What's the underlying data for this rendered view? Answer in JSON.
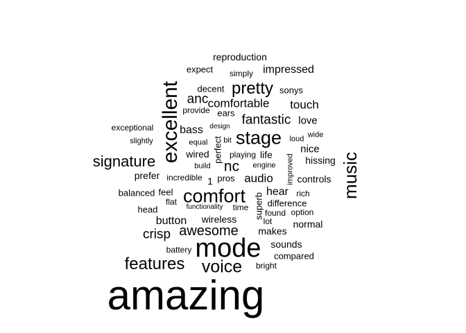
{
  "words": [
    {
      "text": "amazing"
    },
    {
      "text": "mode"
    },
    {
      "text": "excellent"
    },
    {
      "text": "comfort"
    },
    {
      "text": "stage"
    },
    {
      "text": "music"
    },
    {
      "text": "voice"
    },
    {
      "text": "features"
    },
    {
      "text": "pretty"
    },
    {
      "text": "signature"
    },
    {
      "text": "awesome"
    },
    {
      "text": "fantastic"
    },
    {
      "text": "nc"
    },
    {
      "text": "anc"
    },
    {
      "text": "crisp"
    },
    {
      "text": "comfortable"
    },
    {
      "text": "touch"
    },
    {
      "text": "impressed"
    },
    {
      "text": "audio"
    },
    {
      "text": "hear"
    },
    {
      "text": "bass"
    },
    {
      "text": "button"
    },
    {
      "text": "love"
    },
    {
      "text": "nice"
    },
    {
      "text": "hissing"
    },
    {
      "text": "normal"
    },
    {
      "text": "controls"
    },
    {
      "text": "wireless"
    },
    {
      "text": "sounds"
    },
    {
      "text": "reproduction"
    },
    {
      "text": "expect"
    },
    {
      "text": "simply"
    },
    {
      "text": "decent"
    },
    {
      "text": "sonys"
    },
    {
      "text": "provide"
    },
    {
      "text": "ears"
    },
    {
      "text": "exceptional"
    },
    {
      "text": "design"
    },
    {
      "text": "loud"
    },
    {
      "text": "wide"
    },
    {
      "text": "slightly"
    },
    {
      "text": "equal"
    },
    {
      "text": "bit"
    },
    {
      "text": "perfect"
    },
    {
      "text": "wired"
    },
    {
      "text": "playing"
    },
    {
      "text": "life"
    },
    {
      "text": "build"
    },
    {
      "text": "engine"
    },
    {
      "text": "improved"
    },
    {
      "text": "prefer"
    },
    {
      "text": "incredible"
    },
    {
      "text": "1"
    },
    {
      "text": "pros"
    },
    {
      "text": "balanced"
    },
    {
      "text": "feel"
    },
    {
      "text": "superb"
    },
    {
      "text": "rich"
    },
    {
      "text": "flat"
    },
    {
      "text": "difference"
    },
    {
      "text": "head"
    },
    {
      "text": "functionality"
    },
    {
      "text": "time"
    },
    {
      "text": "found"
    },
    {
      "text": "option"
    },
    {
      "text": "lot"
    },
    {
      "text": "makes"
    },
    {
      "text": "battery"
    },
    {
      "text": "compared"
    },
    {
      "text": "bright"
    }
  ]
}
